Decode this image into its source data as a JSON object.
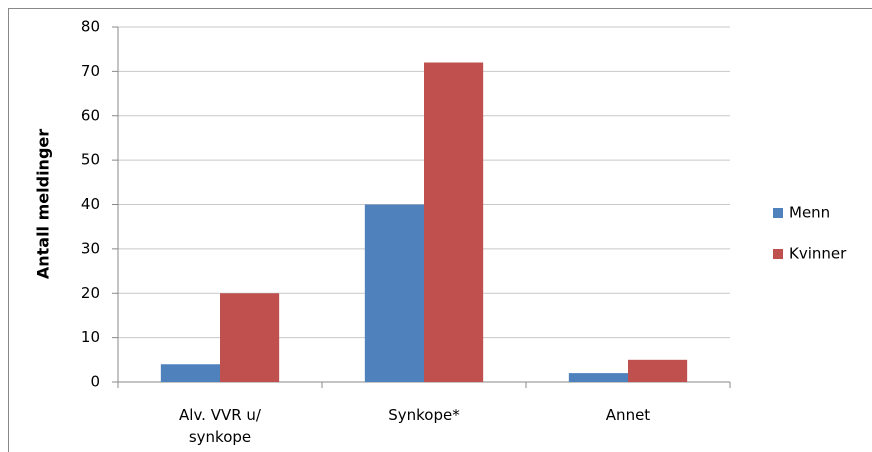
{
  "chart_data": {
    "type": "bar",
    "y_label": "Antall meldinger",
    "categories": [
      "Alv. VVR u/ synkope",
      "Synkope*",
      "Annet"
    ],
    "series": [
      {
        "name": "Menn",
        "color": "#4f81bd",
        "values": [
          4,
          40,
          2
        ]
      },
      {
        "name": "Kvinner",
        "color": "#c0504d",
        "values": [
          20,
          72,
          5
        ]
      }
    ],
    "ylim": [
      0,
      80
    ],
    "yticks": [
      0,
      10,
      20,
      30,
      40,
      50,
      60,
      70,
      80
    ],
    "grid": true,
    "legend": "right"
  }
}
